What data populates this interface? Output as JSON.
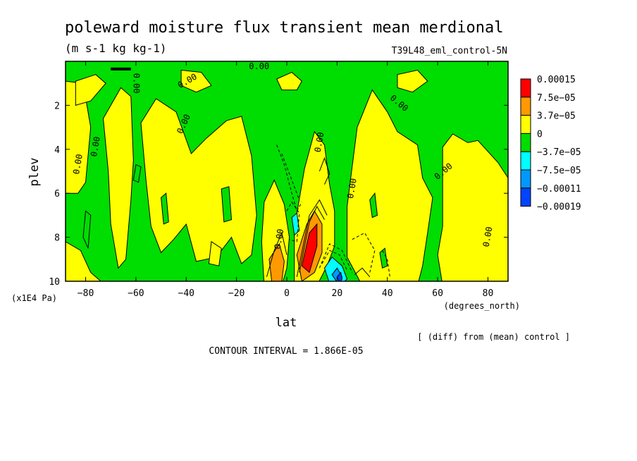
{
  "chart_data": {
    "type": "heatmap",
    "title": "poleward moisture flux transient mean merdional",
    "units": "(m s-1 kg kg-1)",
    "run_label": "T39L48_eml_control-5N",
    "xlabel": "lat",
    "x_units": "(degrees_north)",
    "ylabel": "plev",
    "y_units": "(x1E4 Pa)",
    "xlim": [
      -88,
      88
    ],
    "ylim": [
      10,
      0
    ],
    "x_ticks": [
      "-80",
      "-60",
      "-40",
      "-20",
      "0",
      "20",
      "40",
      "60",
      "80"
    ],
    "y_ticks": [
      "2",
      "4",
      "6",
      "8",
      "10"
    ],
    "contour_interval_text": "CONTOUR INTERVAL = 1.866E-05",
    "diff_note": "[ (diff) from (mean) control ]",
    "contour_labels": [
      "0.00"
    ],
    "colorbar": {
      "labels": [
        "0.00015",
        "7.5e-05",
        "3.7e-05",
        "0",
        "-3.7e-05",
        "-7.5e-05",
        "-0.00011",
        "-0.00019"
      ],
      "colors": [
        "#ff0000",
        "#ff9900",
        "#ffff00",
        "#00dd00",
        "#00ffff",
        "#0099ff",
        "#0044ff"
      ]
    },
    "approx_regions": [
      {
        "sign": "positive",
        "lat": [
          -85,
          -78
        ],
        "plev": [
          2,
          6
        ],
        "note": "weak positive"
      },
      {
        "sign": "positive",
        "lat": [
          -72,
          -62
        ],
        "plev": [
          1,
          8
        ],
        "note": "weak positive"
      },
      {
        "sign": "positive",
        "lat": [
          -58,
          -12
        ],
        "plev": [
          2,
          9
        ],
        "note": "broad weak positive"
      },
      {
        "sign": "positive",
        "lat": [
          -2,
          16
        ],
        "plev": [
          6.5,
          10
        ],
        "note": "strong positive core near 10N, peak ~0.00015"
      },
      {
        "sign": "negative",
        "lat": [
          14,
          26
        ],
        "plev": [
          8.5,
          10
        ],
        "note": "negative core near 20N, min ~-0.00011"
      },
      {
        "sign": "positive",
        "lat": [
          20,
          60
        ],
        "plev": [
          1,
          10
        ],
        "note": "broad weak positive"
      },
      {
        "sign": "positive",
        "lat": [
          62,
          88
        ],
        "plev": [
          3,
          10
        ],
        "note": "weak positive"
      }
    ]
  }
}
